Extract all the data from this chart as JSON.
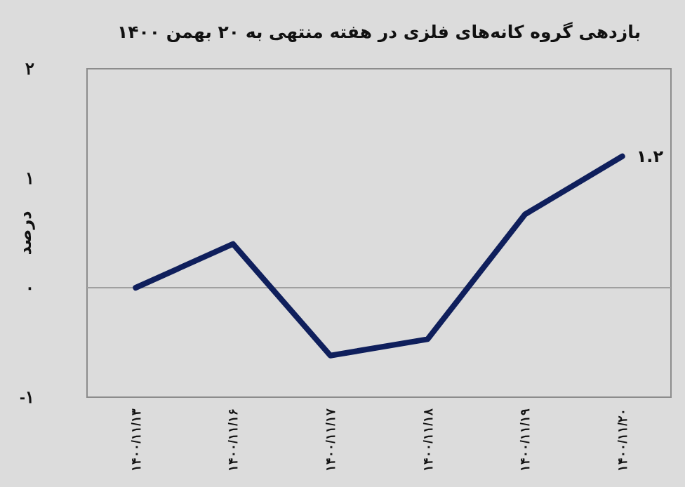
{
  "chart_data": {
    "type": "line",
    "title": "بازدهی گروه کانه‌های فلزی در هفته منتهی به ۲۰ بهمن ۱۴۰۰",
    "ylabel": "درصد",
    "categories": [
      "۱۴۰۰/۱۱/۱۳",
      "۱۴۰۰/۱۱/۱۶",
      "۱۴۰۰/۱۱/۱۷",
      "۱۴۰۰/۱۱/۱۸",
      "۱۴۰۰/۱۱/۱۹",
      "۱۴۰۰/۱۱/۲۰"
    ],
    "series": [
      {
        "color": "#0f1f5c",
        "values": [
          0,
          0.4,
          -0.62,
          -0.47,
          0.67,
          1.2
        ],
        "value_labels": [
          null,
          null,
          null,
          null,
          null,
          "۱.۲"
        ]
      }
    ],
    "ylim": [
      -1,
      2
    ],
    "yticks": [
      {
        "value": -1,
        "label": "-۱"
      },
      {
        "value": 0,
        "label": "۰"
      },
      {
        "value": 1,
        "label": "۱"
      },
      {
        "value": 2,
        "label": "۲"
      }
    ],
    "ref_lines": [
      {
        "axis": "y",
        "value": 0,
        "color": "#a0a0a0"
      }
    ],
    "grid": false,
    "marker": "none",
    "line_style": "solid"
  }
}
